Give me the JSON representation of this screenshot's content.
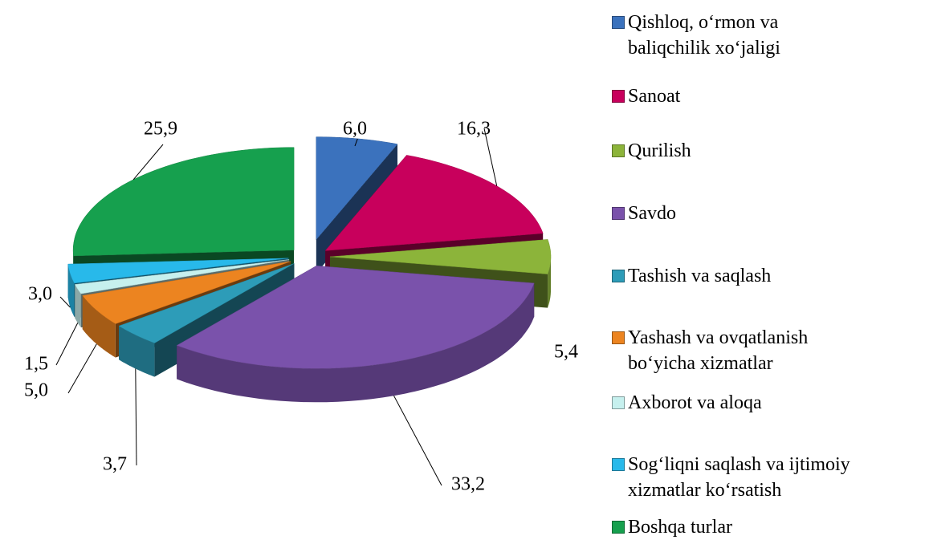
{
  "chart_data": {
    "type": "pie",
    "categories": [
      "Qishloq, o‘rmon va baliqchilik xo‘jaligi",
      "Sanoat",
      "Qurilish",
      "Savdo",
      "Tashish va saqlash",
      "Yashash va ovqatlanish bo‘yicha xizmatlar",
      "Axborot va aloqa",
      "Sog‘liqni saqlash va ijtimoiy xizmatlar ko‘rsatish",
      "Boshqa turlar"
    ],
    "values": [
      6.0,
      16.3,
      5.4,
      33.2,
      3.7,
      5.0,
      1.5,
      3.0,
      25.9
    ],
    "value_labels": [
      "6,0",
      "16,3",
      "5,4",
      "33,2",
      "3,7",
      "5,0",
      "1,5",
      "3,0",
      "25,9"
    ],
    "colors": [
      "#3b72bd",
      "#c8005c",
      "#8cb43a",
      "#7a52ab",
      "#2d9cb8",
      "#ec8420",
      "#c6f0ee",
      "#28b9ea",
      "#16a04e"
    ],
    "legend": "right"
  }
}
